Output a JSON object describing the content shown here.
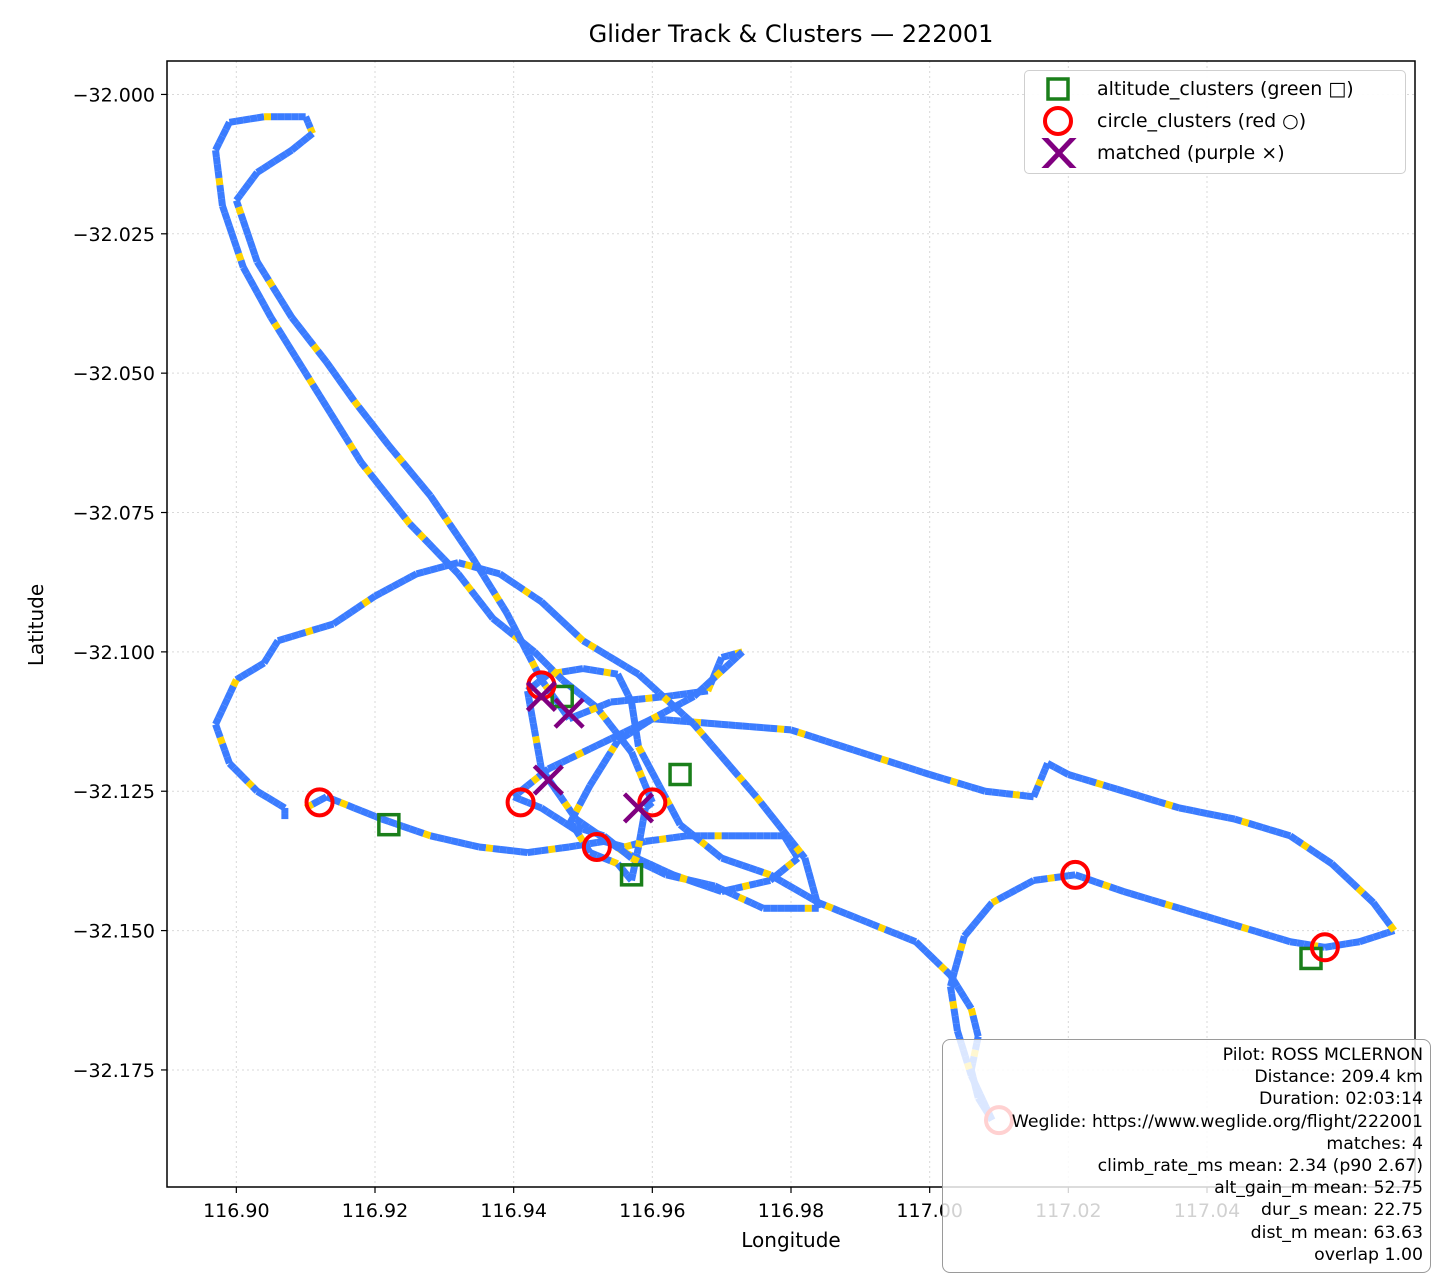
{
  "figure": {
    "title": "Glider Track & Clusters — 222001",
    "xlabel": "Longitude",
    "ylabel": "Latitude"
  },
  "legend": {
    "items": [
      {
        "label": "altitude_clusters (green □)",
        "marker": "square",
        "color": "#1a7f1a"
      },
      {
        "label": "circle_clusters (red ○)",
        "marker": "circle",
        "color": "#ff0000"
      },
      {
        "label": "matched (purple ×)",
        "marker": "x",
        "color": "#800080"
      }
    ]
  },
  "info": {
    "lines": [
      "Pilot: ROSS MCLERNON",
      "Distance: 209.4 km",
      "Duration: 02:03:14",
      "Weglide: https://www.weglide.org/flight/222001",
      "matches: 4",
      "climb_rate_ms mean: 2.34 (p90 2.67)",
      "alt_gain_m mean: 52.75",
      "dur_s mean: 22.75",
      "dist_m mean: 63.63",
      "overlap 1.00"
    ]
  },
  "chart_data": {
    "type": "scatter",
    "title": "Glider Track & Clusters — 222001",
    "xlabel": "Longitude",
    "ylabel": "Latitude",
    "xlim": [
      116.89,
      117.07
    ],
    "ylim": [
      -32.196,
      -31.994
    ],
    "x_ticks": [
      116.9,
      116.92,
      116.94,
      116.96,
      116.98,
      117.0,
      117.02,
      117.04
    ],
    "x_tick_labels": [
      "116.90",
      "116.92",
      "116.94",
      "116.96",
      "116.98",
      "117.00",
      "117.02",
      "117.04"
    ],
    "y_ticks": [
      -32.0,
      -32.025,
      -32.05,
      -32.075,
      -32.1,
      -32.125,
      -32.15,
      -32.175
    ],
    "y_tick_labels": [
      "−32.000",
      "−32.025",
      "−32.050",
      "−32.075",
      "−32.100",
      "−32.125",
      "−32.150",
      "−32.175"
    ],
    "grid": true,
    "legend_position": "top-right",
    "colors": {
      "track": "#3b7cff",
      "track_highlight": "#ffd400",
      "altitude": "#1a7f1a",
      "circle": "#ff0000",
      "matched": "#800080"
    },
    "track": [
      [
        116.91,
        -32.128
      ],
      [
        116.913,
        -32.126
      ],
      [
        116.917,
        -32.128
      ],
      [
        116.921,
        -32.13
      ],
      [
        116.928,
        -32.133
      ],
      [
        116.935,
        -32.135
      ],
      [
        116.942,
        -32.136
      ],
      [
        116.948,
        -32.135
      ],
      [
        116.953,
        -32.134
      ],
      [
        116.956,
        -32.135
      ],
      [
        116.959,
        -32.134
      ],
      [
        116.965,
        -32.133
      ],
      [
        116.973,
        -32.133
      ],
      [
        116.979,
        -32.133
      ],
      [
        116.981,
        -32.137
      ],
      [
        116.977,
        -32.141
      ],
      [
        116.97,
        -32.143
      ],
      [
        116.963,
        -32.14
      ],
      [
        116.956,
        -32.136
      ],
      [
        116.949,
        -32.13
      ],
      [
        116.944,
        -32.121
      ],
      [
        116.943,
        -32.114
      ],
      [
        116.942,
        -32.107
      ],
      [
        116.945,
        -32.104
      ],
      [
        116.95,
        -32.103
      ],
      [
        116.955,
        -32.104
      ],
      [
        116.957,
        -32.109
      ],
      [
        116.958,
        -32.117
      ],
      [
        116.961,
        -32.124
      ],
      [
        116.964,
        -32.131
      ],
      [
        116.97,
        -32.137
      ],
      [
        116.977,
        -32.14
      ],
      [
        116.984,
        -32.145
      ],
      [
        116.99,
        -32.148
      ],
      [
        116.998,
        -32.152
      ],
      [
        117.003,
        -32.158
      ],
      [
        117.006,
        -32.164
      ],
      [
        117.007,
        -32.169
      ],
      [
        117.006,
        -32.175
      ],
      [
        117.007,
        -32.18
      ],
      [
        117.009,
        -32.184
      ],
      [
        117.006,
        -32.176
      ],
      [
        117.004,
        -32.168
      ],
      [
        117.003,
        -32.16
      ],
      [
        117.005,
        -32.151
      ],
      [
        117.009,
        -32.145
      ],
      [
        117.015,
        -32.141
      ],
      [
        117.021,
        -32.14
      ],
      [
        117.028,
        -32.143
      ],
      [
        117.036,
        -32.146
      ],
      [
        117.044,
        -32.149
      ],
      [
        117.052,
        -32.152
      ],
      [
        117.057,
        -32.153
      ],
      [
        117.062,
        -32.152
      ],
      [
        117.067,
        -32.15
      ],
      [
        117.064,
        -32.145
      ],
      [
        117.058,
        -32.138
      ],
      [
        117.052,
        -32.133
      ],
      [
        117.044,
        -32.13
      ],
      [
        117.036,
        -32.128
      ],
      [
        117.028,
        -32.125
      ],
      [
        117.02,
        -32.122
      ],
      [
        117.017,
        -32.12
      ],
      [
        117.016,
        -32.123
      ],
      [
        117.015,
        -32.126
      ],
      [
        117.008,
        -32.125
      ],
      [
        117.0,
        -32.122
      ],
      [
        116.99,
        -32.118
      ],
      [
        116.98,
        -32.114
      ],
      [
        116.97,
        -32.113
      ],
      [
        116.96,
        -32.112
      ],
      [
        116.955,
        -32.115
      ],
      [
        116.95,
        -32.118
      ],
      [
        116.945,
        -32.121
      ],
      [
        116.942,
        -32.124
      ],
      [
        116.94,
        -32.126
      ],
      [
        116.944,
        -32.128
      ],
      [
        116.949,
        -32.132
      ],
      [
        116.951,
        -32.136
      ],
      [
        116.955,
        -32.138
      ],
      [
        116.957,
        -32.141
      ],
      [
        116.958,
        -32.135
      ],
      [
        116.959,
        -32.128
      ],
      [
        116.96,
        -32.127
      ],
      [
        116.957,
        -32.118
      ],
      [
        116.952,
        -32.11
      ],
      [
        116.947,
        -32.105
      ],
      [
        116.943,
        -32.1
      ],
      [
        116.937,
        -32.094
      ],
      [
        116.932,
        -32.086
      ],
      [
        116.925,
        -32.077
      ],
      [
        116.918,
        -32.066
      ],
      [
        116.913,
        -32.056
      ],
      [
        116.909,
        -32.048
      ],
      [
        116.905,
        -32.04
      ],
      [
        116.901,
        -32.031
      ],
      [
        116.898,
        -32.02
      ],
      [
        116.897,
        -32.01
      ],
      [
        116.899,
        -32.005
      ],
      [
        116.904,
        -32.004
      ],
      [
        116.91,
        -32.004
      ],
      [
        116.911,
        -32.007
      ],
      [
        116.908,
        -32.01
      ],
      [
        116.903,
        -32.014
      ],
      [
        116.9,
        -32.019
      ],
      [
        116.903,
        -32.03
      ],
      [
        116.908,
        -32.04
      ],
      [
        116.913,
        -32.048
      ],
      [
        116.917,
        -32.055
      ],
      [
        116.922,
        -32.063
      ],
      [
        116.928,
        -32.072
      ],
      [
        116.934,
        -32.083
      ],
      [
        116.939,
        -32.093
      ],
      [
        116.944,
        -32.105
      ],
      [
        116.948,
        -32.112
      ],
      [
        116.954,
        -32.109
      ],
      [
        116.962,
        -32.108
      ],
      [
        116.968,
        -32.107
      ],
      [
        116.97,
        -32.101
      ],
      [
        116.973,
        -32.1
      ],
      [
        116.966,
        -32.108
      ],
      [
        116.96,
        -32.112
      ],
      [
        116.955,
        -32.116
      ],
      [
        116.951,
        -32.124
      ],
      [
        116.948,
        -32.131
      ],
      [
        116.953,
        -32.133
      ],
      [
        116.957,
        -32.137
      ],
      [
        116.962,
        -32.14
      ],
      [
        116.969,
        -32.142
      ],
      [
        116.976,
        -32.146
      ],
      [
        116.984,
        -32.146
      ],
      [
        116.982,
        -32.137
      ],
      [
        116.975,
        -32.126
      ],
      [
        116.966,
        -32.113
      ],
      [
        116.958,
        -32.104
      ],
      [
        116.95,
        -32.098
      ],
      [
        116.944,
        -32.091
      ],
      [
        116.938,
        -32.086
      ],
      [
        116.932,
        -32.084
      ],
      [
        116.926,
        -32.086
      ],
      [
        116.92,
        -32.09
      ],
      [
        116.914,
        -32.095
      ],
      [
        116.906,
        -32.098
      ],
      [
        116.904,
        -32.102
      ],
      [
        116.9,
        -32.105
      ],
      [
        116.897,
        -32.113
      ],
      [
        116.899,
        -32.12
      ],
      [
        116.903,
        -32.125
      ],
      [
        116.907,
        -32.128
      ],
      [
        116.907,
        -32.13
      ]
    ],
    "altitude_clusters": [
      [
        116.922,
        -32.131
      ],
      [
        116.947,
        -32.108
      ],
      [
        116.964,
        -32.122
      ],
      [
        116.957,
        -32.14
      ],
      [
        117.055,
        -32.155
      ]
    ],
    "circle_clusters": [
      [
        116.912,
        -32.127
      ],
      [
        116.944,
        -32.106
      ],
      [
        116.941,
        -32.127
      ],
      [
        116.952,
        -32.135
      ],
      [
        116.96,
        -32.127
      ],
      [
        117.021,
        -32.14
      ],
      [
        117.057,
        -32.153
      ],
      [
        117.01,
        -32.184
      ]
    ],
    "matched": [
      [
        116.944,
        -32.108
      ],
      [
        116.945,
        -32.123
      ],
      [
        116.958,
        -32.128
      ],
      [
        116.948,
        -32.111
      ]
    ]
  }
}
